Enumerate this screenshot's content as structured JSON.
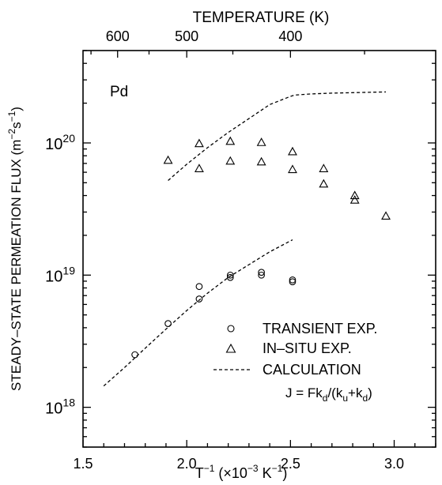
{
  "chart_data": {
    "type": "scatter",
    "title": "",
    "xlabel": "T",
    "xlabel_sup": "−1",
    "xlabel_unit": "(×10",
    "xlabel_unit_sup": "−3",
    "xlabel_unit_tail": " K",
    "xlabel_unit_tail_sup": "−1",
    "xlabel_unit_close": ")",
    "ylabel": "STEADY–STATE  PERMEATION  FLUX  (m",
    "ylabel_sup1": "−2",
    "ylabel_mid": "s",
    "ylabel_sup2": "−1",
    "ylabel_close": ")",
    "top_axis_label": "TEMPERATURE  (K)",
    "annotation": "Pd",
    "xlim": [
      1.5,
      3.2
    ],
    "ylim": [
      5e+17,
      5e+20
    ],
    "yscale": "log",
    "x_ticks": [
      {
        "value": 1.5,
        "label": "1.5"
      },
      {
        "value": 2.0,
        "label": "2.0"
      },
      {
        "value": 2.5,
        "label": "2.5"
      },
      {
        "value": 3.0,
        "label": "3.0"
      }
    ],
    "y_ticks": [
      {
        "value": 1e+18,
        "base": "10",
        "exp": "18"
      },
      {
        "value": 1e+19,
        "base": "10",
        "exp": "19"
      },
      {
        "value": 1e+20,
        "base": "10",
        "exp": "20"
      }
    ],
    "top_ticks": [
      {
        "value": 600,
        "label": "600"
      },
      {
        "value": 500,
        "label": "500"
      },
      {
        "value": 400,
        "label": "400"
      }
    ],
    "series": [
      {
        "name": "TRANSIENT  EXP.",
        "marker": "circle",
        "x": [
          1.75,
          1.91,
          2.06,
          2.06,
          2.21,
          2.21,
          2.36,
          2.36,
          2.51,
          2.51
        ],
        "y": [
          2.5e+18,
          4.3e+18,
          6.6e+18,
          8.2e+18,
          9.6e+18,
          1e+19,
          1e+19,
          1.05e+19,
          8.9e+18,
          9.2e+18
        ]
      },
      {
        "name": "IN–SITU  EXP.",
        "marker": "triangle",
        "x": [
          1.91,
          2.06,
          2.06,
          2.21,
          2.21,
          2.36,
          2.36,
          2.51,
          2.51,
          2.66,
          2.66,
          2.81,
          2.81,
          2.96
        ],
        "y": [
          7.4e+19,
          9.9e+19,
          6.4e+19,
          1.03e+20,
          7.3e+19,
          1.01e+20,
          7.2e+19,
          8.6e+19,
          6.3e+19,
          6.4e+19,
          4.9e+19,
          4e+19,
          3.7e+19,
          2.8e+19
        ]
      },
      {
        "name": "CALCULATION",
        "marker": "dashed",
        "segments": [
          {
            "x": [
              1.91,
              2.0,
              2.1,
              2.2,
              2.3,
              2.4,
              2.5,
              2.52,
              2.6,
              2.7,
              2.8,
              2.9,
              2.96
            ],
            "y": [
              5.2e+19,
              6.9e+19,
              9.2e+19,
              1.2e+20,
              1.53e+20,
              1.95e+20,
              2.25e+20,
              2.3e+20,
              2.35e+20,
              2.38e+20,
              2.4e+20,
              2.42e+20,
              2.43e+20
            ]
          },
          {
            "x": [
              1.6,
              1.7,
              1.8,
              1.9,
              2.0,
              2.1,
              2.2,
              2.3,
              2.4,
              2.51
            ],
            "y": [
              1.45e+18,
              2e+18,
              2.8e+18,
              3.9e+18,
              5.4e+18,
              7.3e+18,
              9.6e+18,
              1.2e+19,
              1.5e+19,
              1.85e+19
            ]
          }
        ]
      }
    ],
    "legend_position": "bottom-right",
    "equation": {
      "j": "J  =  Fk",
      "sub1": "d",
      "mid": "/(k",
      "sub2": "u",
      "plus": "+k",
      "sub3": "d",
      "close": ")"
    }
  }
}
